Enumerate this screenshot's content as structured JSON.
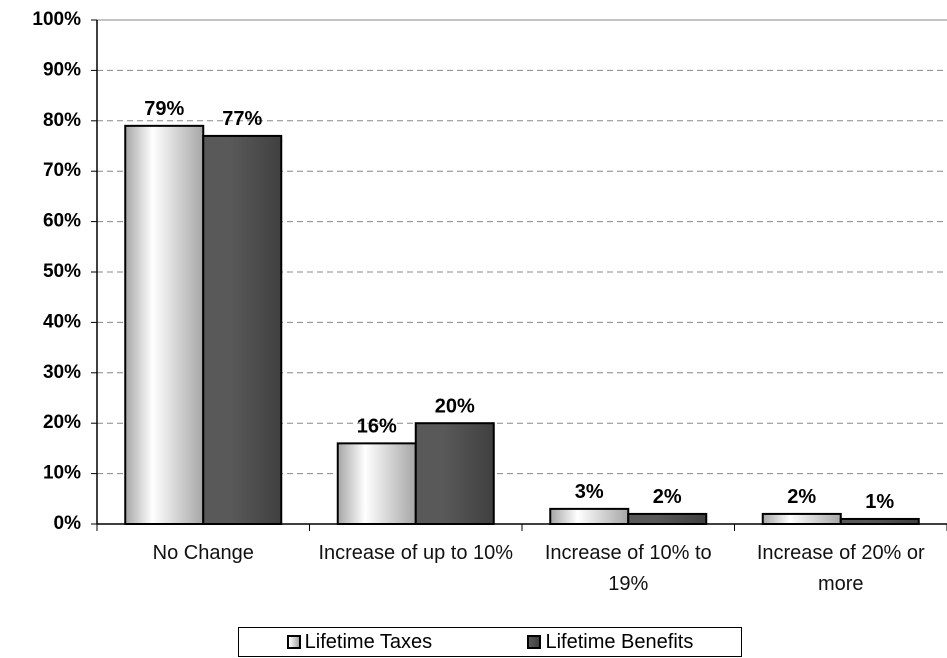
{
  "chart_data": {
    "type": "bar",
    "categories": [
      "No Change",
      "Increase of up to 10%",
      "Increase of 10% to 19%",
      "Increase of 20% or more"
    ],
    "series": [
      {
        "name": "Lifetime Taxes",
        "color": "#a6a6a6",
        "values": [
          79,
          16,
          3,
          2
        ],
        "value_labels": [
          "79%",
          "16%",
          "3%",
          "2%"
        ]
      },
      {
        "name": "Lifetime Benefits",
        "color": "#595959",
        "values": [
          77,
          20,
          2,
          1
        ],
        "value_labels": [
          "77%",
          "20%",
          "2%",
          "1%"
        ]
      }
    ],
    "ylim": [
      0,
      100
    ],
    "yticks": [
      {
        "value": 0,
        "label": "0%"
      },
      {
        "value": 10,
        "label": "10%"
      },
      {
        "value": 20,
        "label": "20%"
      },
      {
        "value": 30,
        "label": "30%"
      },
      {
        "value": 40,
        "label": "40%"
      },
      {
        "value": 50,
        "label": "50%"
      },
      {
        "value": 60,
        "label": "60%"
      },
      {
        "value": 70,
        "label": "70%"
      },
      {
        "value": 80,
        "label": "80%"
      },
      {
        "value": 90,
        "label": "90%"
      },
      {
        "value": 100,
        "label": "100%"
      }
    ],
    "grid": true
  }
}
